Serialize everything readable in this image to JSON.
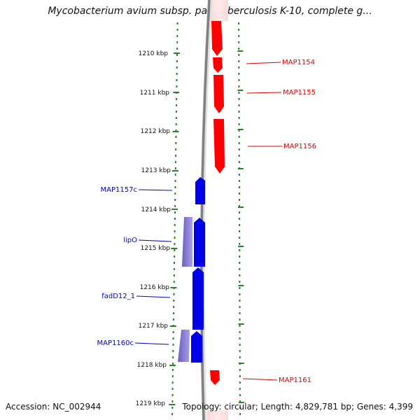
{
  "title": "Mycobacterium avium subsp. paratuberculosis K-10, complete g...",
  "kbp_labels": [
    "1210 kbp",
    "1211 kbp",
    "1212 kbp",
    "1213 kbp",
    "1214 kbp",
    "1215 kbp",
    "1216 kbp",
    "1217 kbp",
    "1218 kbp",
    "1219 kbp"
  ],
  "genes_forward": [
    {
      "name": "MAP1154",
      "color": "#e00000"
    },
    {
      "name": "MAP1155",
      "color": "#e00000"
    },
    {
      "name": "MAP1156",
      "color": "#e00000"
    },
    {
      "name": "MAP1161",
      "color": "#e00000"
    }
  ],
  "genes_reverse": [
    {
      "name": "MAP1157c",
      "color": "#0000c8"
    },
    {
      "name": "lipO",
      "color": "#0000c8"
    },
    {
      "name": "fadD12_1",
      "color": "#0000c8"
    },
    {
      "name": "MAP1160c",
      "color": "#0000c8"
    }
  ],
  "colors": {
    "forward": "#ff0000",
    "reverse": "#0000e6",
    "reverse_faded": "#7a6ec8",
    "backbone": "#888888",
    "dots": "#2f7d2f"
  },
  "footer": {
    "accession": "Accession: NC_002944",
    "summary": "Topology: circular; Length: 4,829,781 bp; Genes: 4,399"
  }
}
